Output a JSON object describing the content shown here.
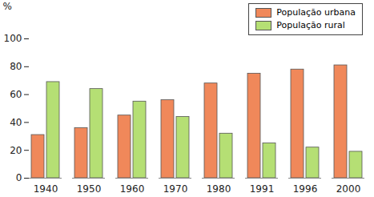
{
  "chart_data": {
    "type": "bar",
    "categories": [
      "1940",
      "1950",
      "1960",
      "1970",
      "1980",
      "1991",
      "1996",
      "2000"
    ],
    "series": [
      {
        "name": "População urbana",
        "color": "#f0885a",
        "values": [
          31,
          36,
          45,
          56,
          68,
          75,
          78,
          81
        ]
      },
      {
        "name": "População rural",
        "color": "#b5df74",
        "values": [
          69,
          64,
          55,
          44,
          32,
          25,
          22,
          19
        ]
      }
    ],
    "y_label": "%",
    "ylim": [
      0,
      100
    ],
    "yticks": [
      0,
      20,
      40,
      60,
      80,
      100
    ],
    "grid": false,
    "legend": "top-right"
  }
}
